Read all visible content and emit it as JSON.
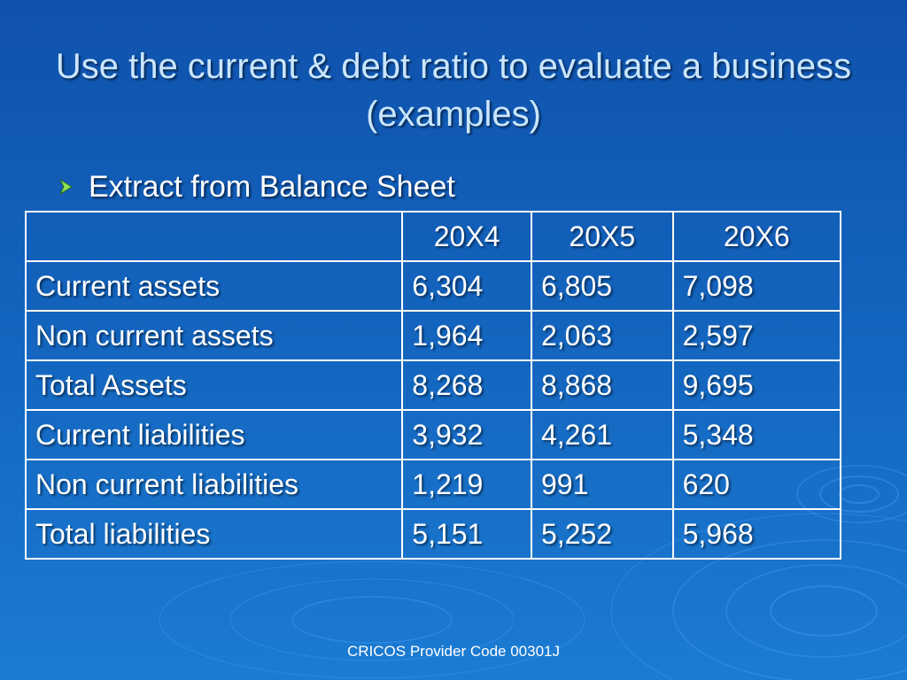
{
  "slide": {
    "title": "Use the current & debt ratio to evaluate a business (examples)",
    "bullet": "Extract from Balance Sheet",
    "footer": "CRICOS Provider Code 00301J"
  },
  "table": {
    "headers": [
      "",
      "20X4",
      "20X5",
      "20X6"
    ],
    "rows": [
      {
        "label": "Current assets",
        "values": [
          "6,304",
          "6,805",
          "7,098"
        ]
      },
      {
        "label": "Non current assets",
        "values": [
          "1,964",
          "2,063",
          "2,597"
        ]
      },
      {
        "label": "Total Assets",
        "values": [
          "8,268",
          "8,868",
          "9,695"
        ]
      },
      {
        "label": "Current liabilities",
        "values": [
          "3,932",
          "4,261",
          "5,348"
        ]
      },
      {
        "label": "Non current liabilities",
        "values": [
          "1,219",
          "991",
          "620"
        ]
      },
      {
        "label": "Total liabilities",
        "values": [
          "5,151",
          "5,252",
          "5,968"
        ]
      }
    ]
  },
  "colors": {
    "title_text": "#c9e6ff",
    "bullet_marker": "#8fe35a",
    "background_top": "#0f52ad",
    "background_bottom": "#1b7bd2"
  },
  "icons": {
    "bullet": "arrow-bullet-icon",
    "background": "water-ripple-icon"
  }
}
